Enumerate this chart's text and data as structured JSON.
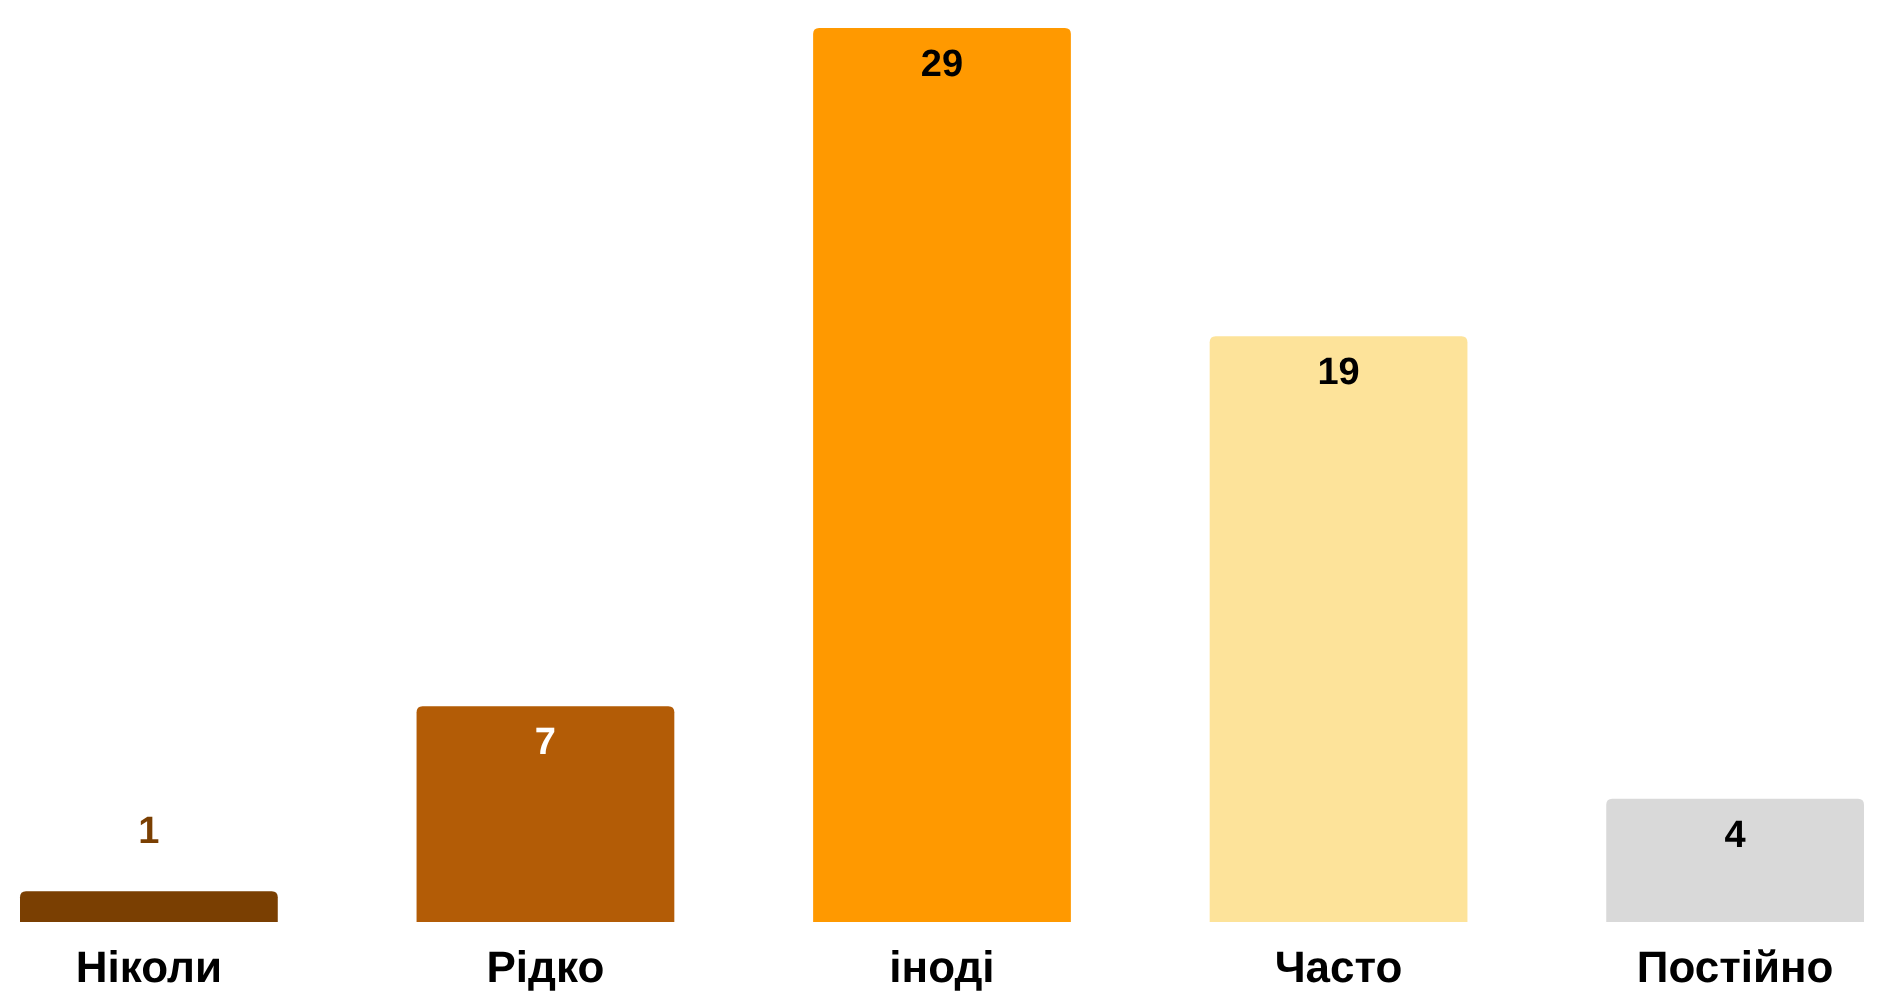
{
  "chart_data": {
    "type": "bar",
    "categories": [
      "Ніколи",
      "Рідко",
      "іноді",
      "Часто",
      "Постійно"
    ],
    "values": [
      1,
      7,
      29,
      19,
      4
    ],
    "colors": [
      "#7a3f02",
      "#b35c06",
      "#ff9900",
      "#fde39a",
      "#d9d9d9"
    ],
    "data_labels": true
  }
}
